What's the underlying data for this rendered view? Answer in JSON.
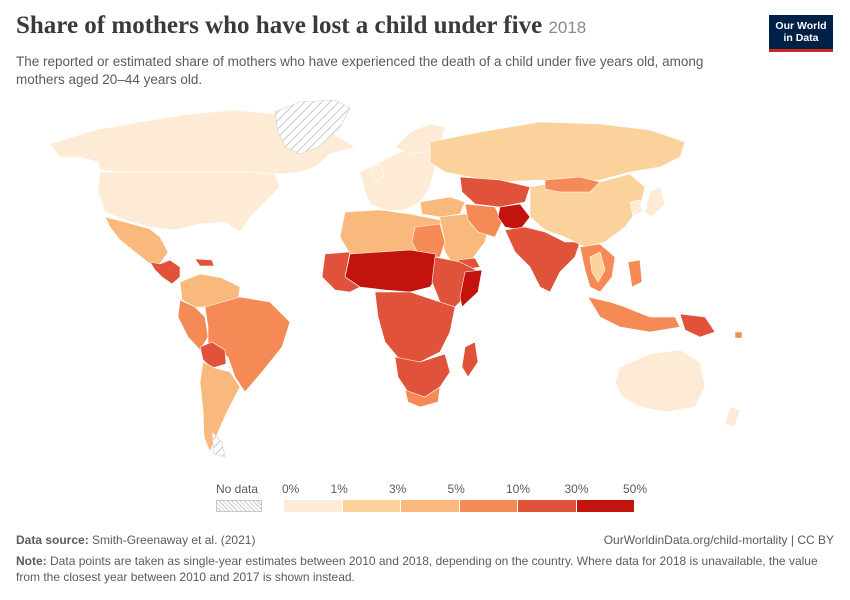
{
  "header": {
    "title": "Share of mothers who have lost a child under five",
    "year": "2018",
    "subtitle": "The reported or estimated share of mothers who have experienced the death of a child under five years old, among mothers aged 20–44 years old."
  },
  "logo": {
    "line1": "Our World",
    "line2": "in Data"
  },
  "legend": {
    "no_data_label": "No data",
    "bins": [
      "0%",
      "1%",
      "3%",
      "5%",
      "10%",
      "30%",
      "50%"
    ],
    "colors": [
      "#fdebd5",
      "#fbd29c",
      "#f9b97c",
      "#f68a56",
      "#e1523b",
      "#c2140c"
    ]
  },
  "footer": {
    "source_label": "Data source:",
    "source": "Smith-Greenaway et al. (2021)",
    "url": "OurWorldinData.org/child-mortality | CC BY",
    "note_label": "Note:",
    "note": "Data points are taken as single-year estimates between 2010 and 2018, depending on the country. Where data for 2018 is unavailable, the value from the closest year between 2010 and 2017 is shown instead."
  }
}
